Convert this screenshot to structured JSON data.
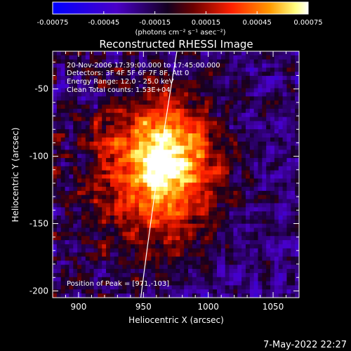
{
  "colorbar": {
    "ticks": [
      "-0.00075",
      "-0.00045",
      "-0.00015",
      "0.00015",
      "0.00045",
      "0.00075"
    ],
    "tick_values": [
      -0.00075,
      -0.00045,
      -0.00015,
      0.00015,
      0.00045,
      0.00075
    ],
    "label": "(photons cm⁻² s⁻¹ asec⁻²)"
  },
  "chart_data": {
    "type": "heatmap",
    "title": "Reconstructed RHESSI Image",
    "xlabel": "Heliocentric X (arcsec)",
    "ylabel": "Heliocentric Y (arcsec)",
    "xlim": [
      880,
      1070
    ],
    "ylim": [
      -205,
      -22
    ],
    "xticks": [
      900,
      950,
      1000,
      1050
    ],
    "yticks": [
      -50,
      -100,
      -150,
      -200
    ],
    "clim": [
      -0.00075,
      0.00075
    ],
    "peak": [
      971,
      -103
    ],
    "colormap": [
      "#0000ff",
      "#4a00c8",
      "#000000",
      "#8b0000",
      "#ff2000",
      "#ff9a00",
      "#ffff80",
      "#ffffff"
    ],
    "limb_color": "#ffffff"
  },
  "annotations": {
    "time_range": "20-Nov-2006 17:39:00.000 to 17:45:00.000",
    "detectors": "Detectors: 3F 4F 5F 6F 7F 8F, Att 0",
    "energy": "Energy Range: 12.0 - 25.0 keV",
    "clean": "Clean     Total counts: 1.53E+04",
    "peak_text": "Position of Peak = [971,-103]"
  },
  "footer": {
    "date": "7-May-2022 22:27"
  }
}
